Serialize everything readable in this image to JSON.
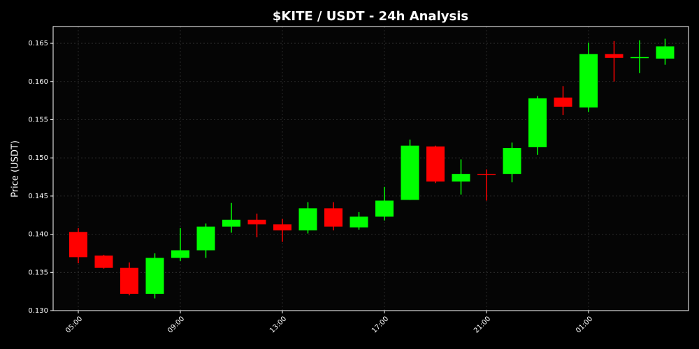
{
  "chart_data": {
    "type": "candlestick",
    "title": "$KITE / USDT - 24h Analysis",
    "y_label": "Price (USDT)",
    "categories": [
      "05:00",
      null,
      null,
      null,
      "09:00",
      null,
      null,
      null,
      "13:00",
      null,
      null,
      null,
      "17:00",
      null,
      null,
      null,
      "21:00",
      null,
      null,
      null,
      "01:00",
      null,
      null,
      null
    ],
    "open": [
      0.1403,
      0.1372,
      0.1356,
      0.1322,
      0.1369,
      0.1379,
      0.141,
      0.1419,
      0.1413,
      0.1405,
      0.1434,
      0.1409,
      0.1423,
      0.1445,
      0.1515,
      0.1469,
      0.1479,
      0.1479,
      0.1514,
      0.1579,
      0.1566,
      0.1636,
      0.1631,
      0.163
    ],
    "high": [
      0.1408,
      0.1373,
      0.1363,
      0.1375,
      0.1408,
      0.1414,
      0.1441,
      0.1427,
      0.142,
      0.1442,
      0.1442,
      0.1429,
      0.1462,
      0.1524,
      0.1516,
      0.1498,
      0.1485,
      0.152,
      0.1581,
      0.1594,
      0.1651,
      0.1653,
      0.1654,
      0.1656
    ],
    "low": [
      0.1362,
      0.1355,
      0.132,
      0.1316,
      0.1365,
      0.1369,
      0.1402,
      0.1396,
      0.139,
      0.1401,
      0.1405,
      0.1406,
      0.1418,
      0.1445,
      0.1467,
      0.1452,
      0.1444,
      0.1468,
      0.1504,
      0.1556,
      0.156,
      0.16,
      0.1611,
      0.1622
    ],
    "close": [
      0.137,
      0.1356,
      0.1322,
      0.1369,
      0.1379,
      0.141,
      0.1419,
      0.1413,
      0.1405,
      0.1434,
      0.141,
      0.1423,
      0.1444,
      0.1516,
      0.1469,
      0.1479,
      0.1478,
      0.1513,
      0.1578,
      0.1567,
      0.1636,
      0.1631,
      0.1632,
      0.1646
    ],
    "up_color": "#00ff00",
    "down_color": "#ff0000",
    "ylim": [
      0.13,
      0.1672
    ],
    "yticks": [
      {
        "value": 0.13,
        "label": "0.130"
      },
      0.135,
      {
        "value": 0.14,
        "label": "0.140"
      },
      0.145,
      {
        "value": 0.15,
        "label": "0.150"
      },
      0.155,
      {
        "value": 0.16,
        "label": "0.160"
      },
      0.165
    ],
    "grid": true
  }
}
